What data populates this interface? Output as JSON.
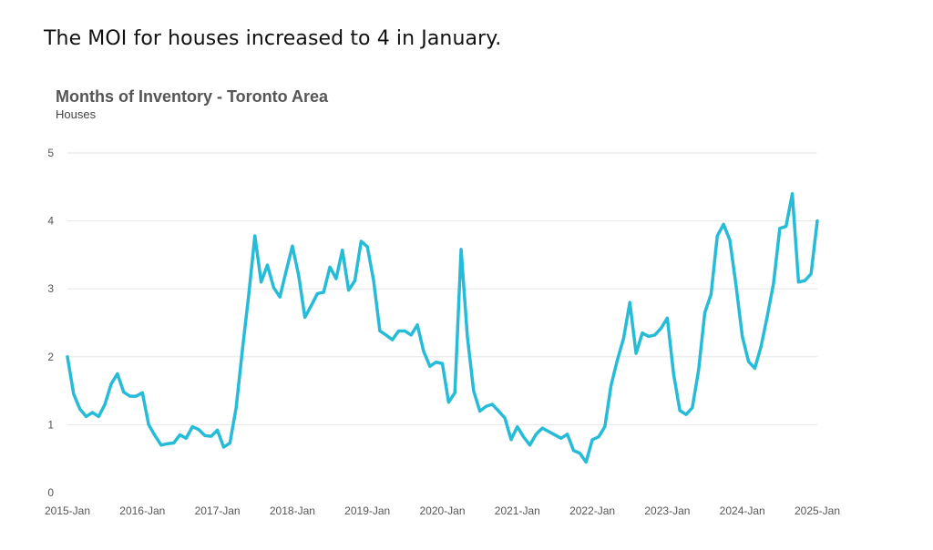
{
  "headline": "The MOI for houses increased to 4 in January.",
  "chart_data": {
    "type": "line",
    "title": "Months of Inventory - Toronto Area",
    "subtitle": "Houses",
    "xlabel": "",
    "ylabel": "",
    "ylim": [
      0,
      5
    ],
    "y_ticks": [
      "0",
      "1",
      "2",
      "3",
      "4",
      "5"
    ],
    "x_ticks": [
      "2015-Jan",
      "2016-Jan",
      "2017-Jan",
      "2018-Jan",
      "2019-Jan",
      "2020-Jan",
      "2021-Jan",
      "2022-Jan",
      "2023-Jan",
      "2024-Jan",
      "2025-Jan"
    ],
    "grid": true,
    "legend": "none",
    "line_color": "#26bcd7",
    "grid_color": "#e6e6e6",
    "series": [
      {
        "x_start": "2015-Jan",
        "frequency": "monthly",
        "values": [
          2.0,
          1.45,
          1.23,
          1.12,
          1.18,
          1.12,
          1.3,
          1.6,
          1.75,
          1.48,
          1.42,
          1.42,
          1.47,
          1.0,
          0.84,
          0.7,
          0.72,
          0.73,
          0.85,
          0.8,
          0.97,
          0.93,
          0.84,
          0.83,
          0.92,
          0.67,
          0.73,
          1.25,
          2.1,
          2.9,
          3.78,
          3.1,
          3.35,
          3.02,
          2.88,
          3.26,
          3.63,
          3.2,
          2.58,
          2.75,
          2.93,
          2.95,
          3.32,
          3.15,
          3.57,
          2.98,
          3.12,
          3.7,
          3.62,
          3.12,
          2.38,
          2.32,
          2.25,
          2.38,
          2.38,
          2.32,
          2.47,
          2.08,
          1.86,
          1.92,
          1.9,
          1.33,
          1.47,
          3.58,
          2.3,
          1.5,
          1.2,
          1.27,
          1.3,
          1.2,
          1.1,
          0.78,
          0.97,
          0.82,
          0.7,
          0.86,
          0.95,
          0.9,
          0.85,
          0.8,
          0.86,
          0.62,
          0.58,
          0.45,
          0.78,
          0.82,
          0.97,
          1.58,
          1.95,
          2.27,
          2.8,
          2.05,
          2.35,
          2.3,
          2.32,
          2.42,
          2.57,
          1.75,
          1.21,
          1.15,
          1.25,
          1.8,
          2.65,
          2.92,
          3.78,
          3.95,
          3.72,
          3.05,
          2.3,
          1.93,
          1.83,
          2.15,
          2.6,
          3.08,
          3.89,
          3.92,
          4.4,
          3.1,
          3.12,
          3.22,
          4.0
        ]
      }
    ]
  }
}
